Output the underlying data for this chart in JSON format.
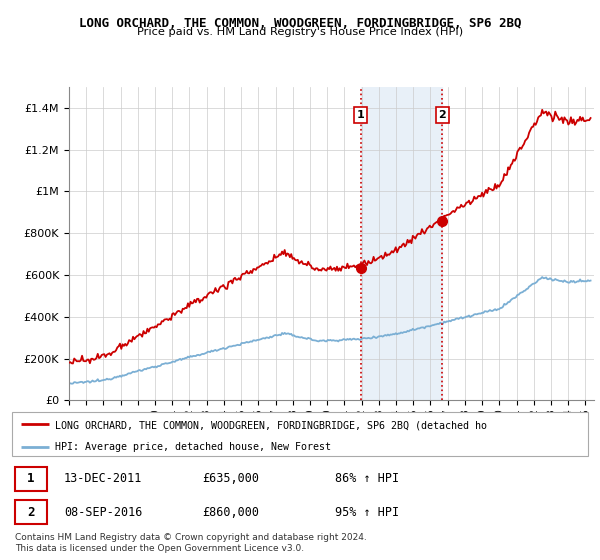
{
  "title": "LONG ORCHARD, THE COMMON, WOODGREEN, FORDINGBRIDGE, SP6 2BQ",
  "subtitle": "Price paid vs. HM Land Registry's House Price Index (HPI)",
  "legend_line1": "LONG ORCHARD, THE COMMON, WOODGREEN, FORDINGBRIDGE, SP6 2BQ (detached ho",
  "legend_line2": "HPI: Average price, detached house, New Forest",
  "sale1_date": "13-DEC-2011",
  "sale1_price": 635000,
  "sale1_label": "86% ↑ HPI",
  "sale2_date": "08-SEP-2016",
  "sale2_price": 860000,
  "sale2_label": "95% ↑ HPI",
  "footer": "Contains HM Land Registry data © Crown copyright and database right 2024.\nThis data is licensed under the Open Government Licence v3.0.",
  "red_color": "#cc0000",
  "blue_color": "#7bafd4",
  "highlight_color": "#e8f0f8",
  "ylim": [
    0,
    1500000
  ],
  "sale1_x": 2011.95,
  "sale2_x": 2016.69,
  "xmin": 1995,
  "xmax": 2025.5
}
